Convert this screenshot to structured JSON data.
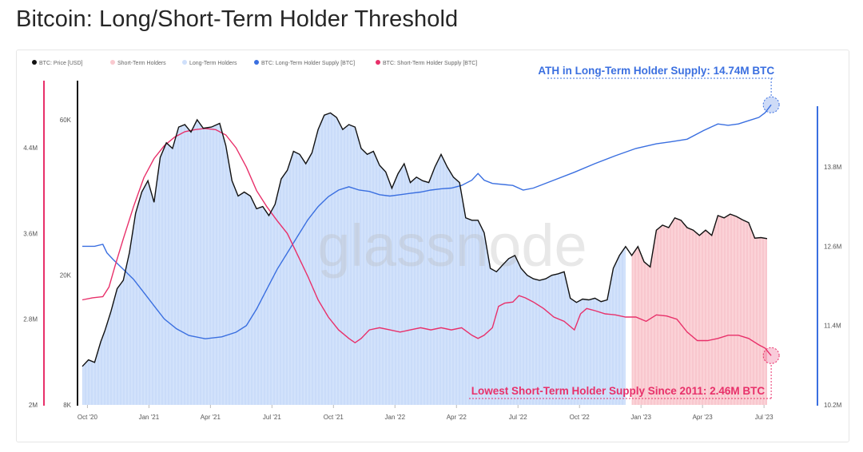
{
  "page": {
    "title": "Bitcoin: Long/Short-Term Holder Threshold",
    "watermark": "glassnode"
  },
  "colors": {
    "price": "#111111",
    "sth_area": "#f9c9cf",
    "lth_area": "#cfe0fb",
    "lth_supply": "#3a6fe0",
    "sth_supply": "#e8306a",
    "left_axis_accent": "#e8306a",
    "right_axis_accent": "#3a6fe0"
  },
  "chart_data": {
    "type": "line",
    "legend_position": "top-left",
    "legend": [
      {
        "label": "BTC: Price [USD]",
        "color": "#111111"
      },
      {
        "label": "Short-Term Holders",
        "color": "#f9c9cf"
      },
      {
        "label": "Long-Term Holders",
        "color": "#cfe0fb"
      },
      {
        "label": "BTC: Long-Term Holder Supply [BTC]",
        "color": "#3a6fe0"
      },
      {
        "label": "BTC: Short-Term Holder Supply [BTC]",
        "color": "#e8306a"
      }
    ],
    "x_ticks": [
      "Oct '20",
      "Jan '21",
      "Apr '21",
      "Jul '21",
      "Oct '21",
      "Jan '22",
      "Apr '22",
      "Jul '22",
      "Oct '22",
      "Jan '23",
      "Apr '23",
      "Jul '23"
    ],
    "x_range": [
      0,
      35.7
    ],
    "y_left_supply": {
      "ticks": [
        "2M",
        "2.8M",
        "3.6M",
        "4.4M"
      ],
      "range": [
        2.0,
        4.9
      ]
    },
    "y_price": {
      "ticks": [
        "8K",
        "20K",
        "60K"
      ],
      "scale": "log"
    },
    "y_right_supply": {
      "ticks": [
        "10.2M",
        "11.4M",
        "12.6M",
        "13.8M"
      ],
      "range": [
        10.2,
        14.9
      ]
    },
    "series": [
      {
        "name": "BTC: Price [USD]",
        "axis": "price",
        "points": [
          [
            0,
            10.5
          ],
          [
            0.3,
            11
          ],
          [
            0.6,
            10.8
          ],
          [
            0.9,
            12.5
          ],
          [
            1.1,
            13.5
          ],
          [
            1.4,
            15.5
          ],
          [
            1.7,
            18.2
          ],
          [
            2.0,
            19.3
          ],
          [
            2.3,
            23.5
          ],
          [
            2.6,
            31
          ],
          [
            2.9,
            36
          ],
          [
            3.2,
            39
          ],
          [
            3.5,
            33.5
          ],
          [
            3.8,
            46
          ],
          [
            4.1,
            51
          ],
          [
            4.4,
            49
          ],
          [
            4.7,
            57
          ],
          [
            5.0,
            58
          ],
          [
            5.3,
            55
          ],
          [
            5.6,
            60
          ],
          [
            5.9,
            56.5
          ],
          [
            6.3,
            57
          ],
          [
            6.7,
            58.5
          ],
          [
            7.0,
            50
          ],
          [
            7.3,
            39
          ],
          [
            7.6,
            35
          ],
          [
            7.9,
            36
          ],
          [
            8.2,
            35
          ],
          [
            8.5,
            32
          ],
          [
            8.8,
            32.5
          ],
          [
            9.1,
            30.5
          ],
          [
            9.4,
            33
          ],
          [
            9.7,
            39.5
          ],
          [
            10.0,
            42
          ],
          [
            10.3,
            48
          ],
          [
            10.6,
            47
          ],
          [
            10.9,
            44
          ],
          [
            11.2,
            47.5
          ],
          [
            11.5,
            56
          ],
          [
            11.8,
            62
          ],
          [
            12.1,
            63
          ],
          [
            12.4,
            61
          ],
          [
            12.7,
            56
          ],
          [
            13.0,
            58
          ],
          [
            13.3,
            57
          ],
          [
            13.6,
            49
          ],
          [
            13.9,
            47
          ],
          [
            14.2,
            48
          ],
          [
            14.5,
            43.5
          ],
          [
            14.8,
            41.5
          ],
          [
            15.1,
            37
          ],
          [
            15.4,
            41
          ],
          [
            15.7,
            44
          ],
          [
            16.0,
            38.5
          ],
          [
            16.3,
            40
          ],
          [
            16.6,
            39
          ],
          [
            16.9,
            38.5
          ],
          [
            17.2,
            43
          ],
          [
            17.5,
            47
          ],
          [
            17.8,
            43
          ],
          [
            18.1,
            40
          ],
          [
            18.4,
            38.5
          ],
          [
            18.7,
            30
          ],
          [
            19.0,
            29.5
          ],
          [
            19.3,
            29.5
          ],
          [
            19.6,
            27
          ],
          [
            19.9,
            21
          ],
          [
            20.2,
            20.5
          ],
          [
            20.5,
            21.5
          ],
          [
            20.8,
            22.5
          ],
          [
            21.1,
            23
          ],
          [
            21.4,
            21
          ],
          [
            21.7,
            20
          ],
          [
            22.0,
            19.5
          ],
          [
            22.3,
            19.3
          ],
          [
            22.6,
            19.5
          ],
          [
            22.9,
            20
          ],
          [
            23.2,
            20.2
          ],
          [
            23.5,
            20.5
          ],
          [
            23.8,
            17
          ],
          [
            24.1,
            16.5
          ],
          [
            24.4,
            16.9
          ],
          [
            24.7,
            16.8
          ],
          [
            25.0,
            17
          ],
          [
            25.3,
            16.6
          ],
          [
            25.6,
            16.8
          ],
          [
            25.9,
            21
          ],
          [
            26.2,
            23
          ],
          [
            26.5,
            24.5
          ],
          [
            26.8,
            23
          ],
          [
            27.1,
            24.5
          ],
          [
            27.4,
            22
          ],
          [
            27.7,
            21.2
          ],
          [
            28.0,
            27.5
          ],
          [
            28.3,
            28.5
          ],
          [
            28.6,
            28
          ],
          [
            28.9,
            30
          ],
          [
            29.2,
            29.5
          ],
          [
            29.5,
            28
          ],
          [
            29.8,
            27.5
          ],
          [
            30.1,
            26.5
          ],
          [
            30.4,
            27.5
          ],
          [
            30.7,
            26.5
          ],
          [
            31.0,
            30.5
          ],
          [
            31.3,
            30
          ],
          [
            31.6,
            30.8
          ],
          [
            31.9,
            30.3
          ],
          [
            32.2,
            29.6
          ],
          [
            32.5,
            29
          ],
          [
            32.8,
            26
          ],
          [
            33.1,
            26.1
          ],
          [
            33.4,
            25.9
          ]
        ]
      },
      {
        "name": "BTC: Long-Term Holder Supply [BTC]",
        "axis": "right",
        "points": [
          [
            0,
            12.6
          ],
          [
            0.6,
            12.6
          ],
          [
            1.0,
            12.63
          ],
          [
            1.2,
            12.5
          ],
          [
            1.5,
            12.4
          ],
          [
            2.0,
            12.25
          ],
          [
            2.5,
            12.1
          ],
          [
            3.0,
            11.9
          ],
          [
            3.5,
            11.7
          ],
          [
            4.0,
            11.5
          ],
          [
            4.6,
            11.35
          ],
          [
            5.2,
            11.25
          ],
          [
            6.0,
            11.2
          ],
          [
            6.8,
            11.23
          ],
          [
            7.5,
            11.3
          ],
          [
            8.0,
            11.4
          ],
          [
            8.5,
            11.65
          ],
          [
            9.0,
            11.95
          ],
          [
            9.5,
            12.25
          ],
          [
            10.0,
            12.5
          ],
          [
            10.5,
            12.75
          ],
          [
            11.0,
            13.0
          ],
          [
            11.5,
            13.2
          ],
          [
            12.0,
            13.35
          ],
          [
            12.5,
            13.45
          ],
          [
            13.0,
            13.5
          ],
          [
            13.5,
            13.45
          ],
          [
            14.0,
            13.43
          ],
          [
            14.5,
            13.38
          ],
          [
            15.0,
            13.36
          ],
          [
            15.5,
            13.38
          ],
          [
            16.0,
            13.4
          ],
          [
            16.5,
            13.42
          ],
          [
            17.0,
            13.45
          ],
          [
            17.5,
            13.47
          ],
          [
            18.0,
            13.48
          ],
          [
            18.5,
            13.52
          ],
          [
            19.0,
            13.6
          ],
          [
            19.3,
            13.7
          ],
          [
            19.6,
            13.6
          ],
          [
            20.0,
            13.55
          ],
          [
            21.0,
            13.52
          ],
          [
            21.5,
            13.45
          ],
          [
            22.0,
            13.48
          ],
          [
            23.0,
            13.6
          ],
          [
            24.0,
            13.72
          ],
          [
            25.0,
            13.85
          ],
          [
            26.0,
            13.97
          ],
          [
            27.0,
            14.08
          ],
          [
            28.0,
            14.15
          ],
          [
            28.7,
            14.18
          ],
          [
            29.5,
            14.22
          ],
          [
            30.3,
            14.35
          ],
          [
            31.0,
            14.45
          ],
          [
            31.5,
            14.43
          ],
          [
            32.0,
            14.45
          ],
          [
            32.5,
            14.5
          ],
          [
            33.0,
            14.55
          ],
          [
            33.3,
            14.62
          ],
          [
            33.6,
            14.74
          ]
        ]
      },
      {
        "name": "BTC: Short-Term Holder Supply [BTC]",
        "axis": "left",
        "points": [
          [
            0,
            2.98
          ],
          [
            0.5,
            3.0
          ],
          [
            1.0,
            3.01
          ],
          [
            1.3,
            3.1
          ],
          [
            1.6,
            3.3
          ],
          [
            2.0,
            3.55
          ],
          [
            2.5,
            3.85
          ],
          [
            3.0,
            4.12
          ],
          [
            3.5,
            4.3
          ],
          [
            4.0,
            4.42
          ],
          [
            4.5,
            4.5
          ],
          [
            5.0,
            4.55
          ],
          [
            5.5,
            4.57
          ],
          [
            6.0,
            4.58
          ],
          [
            6.5,
            4.57
          ],
          [
            7.0,
            4.52
          ],
          [
            7.5,
            4.4
          ],
          [
            8.0,
            4.22
          ],
          [
            8.5,
            4.0
          ],
          [
            9.0,
            3.85
          ],
          [
            9.5,
            3.72
          ],
          [
            10.0,
            3.6
          ],
          [
            10.5,
            3.4
          ],
          [
            11.0,
            3.2
          ],
          [
            11.5,
            2.98
          ],
          [
            12.0,
            2.82
          ],
          [
            12.5,
            2.7
          ],
          [
            13.0,
            2.62
          ],
          [
            13.3,
            2.58
          ],
          [
            13.6,
            2.62
          ],
          [
            14.0,
            2.7
          ],
          [
            14.5,
            2.72
          ],
          [
            15.0,
            2.7
          ],
          [
            15.5,
            2.68
          ],
          [
            16.0,
            2.7
          ],
          [
            16.5,
            2.72
          ],
          [
            17.0,
            2.7
          ],
          [
            17.5,
            2.72
          ],
          [
            18.0,
            2.7
          ],
          [
            18.5,
            2.72
          ],
          [
            19.0,
            2.65
          ],
          [
            19.3,
            2.62
          ],
          [
            19.6,
            2.65
          ],
          [
            20.0,
            2.72
          ],
          [
            20.3,
            2.92
          ],
          [
            20.6,
            2.95
          ],
          [
            21.0,
            2.96
          ],
          [
            21.3,
            3.02
          ],
          [
            21.6,
            3.0
          ],
          [
            22.0,
            2.96
          ],
          [
            22.5,
            2.9
          ],
          [
            23.0,
            2.82
          ],
          [
            23.5,
            2.78
          ],
          [
            24.0,
            2.7
          ],
          [
            24.3,
            2.85
          ],
          [
            24.6,
            2.9
          ],
          [
            25.0,
            2.88
          ],
          [
            25.5,
            2.85
          ],
          [
            26.0,
            2.84
          ],
          [
            26.5,
            2.82
          ],
          [
            27.0,
            2.82
          ],
          [
            27.5,
            2.78
          ],
          [
            28.0,
            2.84
          ],
          [
            28.5,
            2.83
          ],
          [
            29.0,
            2.8
          ],
          [
            29.5,
            2.68
          ],
          [
            30.0,
            2.6
          ],
          [
            30.5,
            2.6
          ],
          [
            31.0,
            2.62
          ],
          [
            31.5,
            2.65
          ],
          [
            32.0,
            2.65
          ],
          [
            32.5,
            2.62
          ],
          [
            33.0,
            2.56
          ],
          [
            33.3,
            2.53
          ],
          [
            33.6,
            2.46
          ]
        ]
      }
    ],
    "sth_region_start": 26.6,
    "annotations": [
      {
        "text": "ATH in Long-Term Holder Supply: 14.74M BTC",
        "color": "#3a6fe0"
      },
      {
        "text": "Lowest Short-Term Holder Supply Since 2011: 2.46M BTC",
        "color": "#e8306a"
      }
    ]
  }
}
